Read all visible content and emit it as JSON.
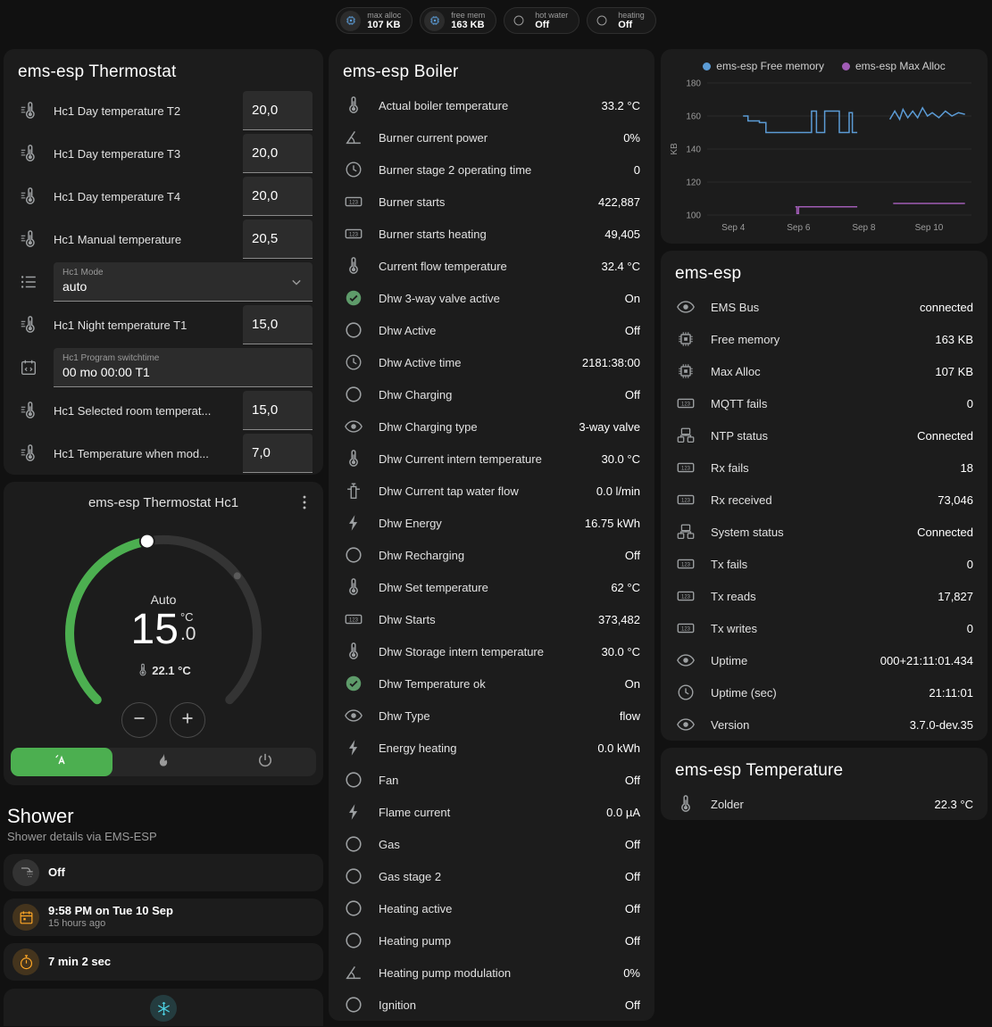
{
  "colors": {
    "accent_green": "#4caf50",
    "check_green": "#5e9b6a",
    "badge_chip_blue": "#5b9bd5",
    "amber": "#ffa726",
    "teal": "#4dd0e1",
    "free_memory_line": "#5b9bd5",
    "max_alloc_line": "#a05cb5"
  },
  "badges": [
    {
      "icon": "chip",
      "label": "max alloc",
      "value": "107 KB",
      "icon_color": "#5b9bd5"
    },
    {
      "icon": "chip",
      "label": "free mem",
      "value": "163 KB",
      "icon_color": "#5b9bd5"
    },
    {
      "icon": "circle",
      "label": "hot water",
      "value": "Off",
      "icon_color": "#9b9b9b"
    },
    {
      "icon": "circle",
      "label": "heating",
      "value": "Off",
      "icon_color": "#9b9b9b"
    }
  ],
  "thermostat_card": {
    "title": "ems-esp Thermostat",
    "rows": [
      {
        "icon": "thermometer-lines",
        "label": "Hc1 Day temperature T2",
        "control": "number",
        "value": "20,0"
      },
      {
        "icon": "thermometer-lines",
        "label": "Hc1 Day temperature T3",
        "control": "number",
        "value": "20,0"
      },
      {
        "icon": "thermometer-lines",
        "label": "Hc1 Day temperature T4",
        "control": "number",
        "value": "20,0"
      },
      {
        "icon": "thermometer-lines",
        "label": "Hc1 Manual temperature",
        "control": "number",
        "value": "20,5"
      },
      {
        "icon": "list",
        "label": "Hc1 Mode",
        "control": "select",
        "value": "auto"
      },
      {
        "icon": "thermometer-lines",
        "label": "Hc1 Night temperature T1",
        "control": "number",
        "value": "15,0"
      },
      {
        "icon": "calendar-sync",
        "label": "Hc1 Program switchtime",
        "control": "text",
        "value": "00 mo 00:00 T1"
      },
      {
        "icon": "thermometer-lines",
        "label": "Hc1 Selected room temperat...",
        "control": "number",
        "value": "15,0"
      },
      {
        "icon": "thermometer-lines",
        "label": "Hc1 Temperature when mod...",
        "control": "number",
        "value": "7,0"
      }
    ]
  },
  "dial_card": {
    "title": "ems-esp Thermostat Hc1",
    "mode": "Auto",
    "target_int": "15",
    "target_dec": ".0",
    "target_unit": "°C",
    "current_temp": "22.1 °C",
    "buttons": [
      {
        "icon": "auto",
        "active": true
      },
      {
        "icon": "flame",
        "active": false
      },
      {
        "icon": "power",
        "active": false
      }
    ]
  },
  "shower": {
    "title": "Shower",
    "subtitle": "Shower details via EMS-ESP",
    "tiles": [
      {
        "icon": "shower",
        "color": "#9e9e9e",
        "primary": "Off",
        "secondary": ""
      },
      {
        "icon": "calendar",
        "color": "#ffa726",
        "primary": "9:58 PM on Tue 10 Sep",
        "secondary": "15 hours ago"
      },
      {
        "icon": "timer",
        "color": "#ffa726",
        "primary": "7 min 2 sec",
        "secondary": ""
      },
      {
        "icon": "snowflake",
        "color": "#4dd0e1",
        "primary": "",
        "secondary": "",
        "partial": true
      }
    ]
  },
  "boiler_card": {
    "title": "ems-esp Boiler",
    "rows": [
      {
        "icon": "thermometer",
        "label": "Actual boiler temperature",
        "value": "33.2 °C"
      },
      {
        "icon": "angle",
        "label": "Burner current power",
        "value": "0%"
      },
      {
        "icon": "clock",
        "label": "Burner stage 2 operating time",
        "value": "0"
      },
      {
        "icon": "counter",
        "label": "Burner starts",
        "value": "422,887"
      },
      {
        "icon": "counter",
        "label": "Burner starts heating",
        "value": "49,405"
      },
      {
        "icon": "thermometer",
        "label": "Current flow temperature",
        "value": "32.4 °C"
      },
      {
        "icon": "check-circle",
        "label": "Dhw 3-way valve active",
        "value": "On"
      },
      {
        "icon": "circle",
        "label": "Dhw Active",
        "value": "Off"
      },
      {
        "icon": "clock",
        "label": "Dhw Active time",
        "value": "2181:38:00"
      },
      {
        "icon": "circle",
        "label": "Dhw Charging",
        "value": "Off"
      },
      {
        "icon": "eye",
        "label": "Dhw Charging type",
        "value": "3-way valve"
      },
      {
        "icon": "thermometer",
        "label": "Dhw Current intern temperature",
        "value": "30.0 °C"
      },
      {
        "icon": "pump",
        "label": "Dhw Current tap water flow",
        "value": "0.0 l/min"
      },
      {
        "icon": "flash",
        "label": "Dhw Energy",
        "value": "16.75 kWh"
      },
      {
        "icon": "circle",
        "label": "Dhw Recharging",
        "value": "Off"
      },
      {
        "icon": "thermometer",
        "label": "Dhw Set temperature",
        "value": "62 °C"
      },
      {
        "icon": "counter",
        "label": "Dhw Starts",
        "value": "373,482"
      },
      {
        "icon": "thermometer",
        "label": "Dhw Storage intern temperature",
        "value": "30.0 °C"
      },
      {
        "icon": "check-circle",
        "label": "Dhw Temperature ok",
        "value": "On"
      },
      {
        "icon": "eye",
        "label": "Dhw Type",
        "value": "flow"
      },
      {
        "icon": "flash",
        "label": "Energy heating",
        "value": "0.0 kWh"
      },
      {
        "icon": "circle",
        "label": "Fan",
        "value": "Off"
      },
      {
        "icon": "flash",
        "label": "Flame current",
        "value": "0.0 µA"
      },
      {
        "icon": "circle",
        "label": "Gas",
        "value": "Off"
      },
      {
        "icon": "circle",
        "label": "Gas stage 2",
        "value": "Off"
      },
      {
        "icon": "circle",
        "label": "Heating active",
        "value": "Off"
      },
      {
        "icon": "circle",
        "label": "Heating pump",
        "value": "Off"
      },
      {
        "icon": "angle",
        "label": "Heating pump modulation",
        "value": "0%"
      },
      {
        "icon": "circle",
        "label": "Ignition",
        "value": "Off"
      }
    ]
  },
  "emsesp_card": {
    "title": "ems-esp",
    "rows": [
      {
        "icon": "eye",
        "label": "EMS Bus",
        "value": "connected"
      },
      {
        "icon": "chip",
        "label": "Free memory",
        "value": "163 KB"
      },
      {
        "icon": "chip",
        "label": "Max Alloc",
        "value": "107 KB"
      },
      {
        "icon": "counter",
        "label": "MQTT fails",
        "value": "0"
      },
      {
        "icon": "network",
        "label": "NTP status",
        "value": "Connected"
      },
      {
        "icon": "counter",
        "label": "Rx fails",
        "value": "18"
      },
      {
        "icon": "counter",
        "label": "Rx received",
        "value": "73,046"
      },
      {
        "icon": "network",
        "label": "System status",
        "value": "Connected"
      },
      {
        "icon": "counter",
        "label": "Tx fails",
        "value": "0"
      },
      {
        "icon": "counter",
        "label": "Tx reads",
        "value": "17,827"
      },
      {
        "icon": "counter",
        "label": "Tx writes",
        "value": "0"
      },
      {
        "icon": "eye",
        "label": "Uptime",
        "value": "000+21:11:01.434"
      },
      {
        "icon": "clock",
        "label": "Uptime (sec)",
        "value": "21:11:01"
      },
      {
        "icon": "eye",
        "label": "Version",
        "value": "3.7.0-dev.35"
      }
    ]
  },
  "temperature_card": {
    "title": "ems-esp Temperature",
    "rows": [
      {
        "icon": "thermometer",
        "label": "Zolder",
        "value": "22.3 °C"
      }
    ]
  },
  "chart_data": {
    "type": "line",
    "title": "",
    "xlabel": "",
    "ylabel": "KB",
    "ylim": [
      100,
      180
    ],
    "yticks": [
      100,
      120,
      140,
      160,
      180
    ],
    "xlim": [
      3.2,
      11.3
    ],
    "xticks": [
      {
        "x": 4,
        "label": "Sep 4"
      },
      {
        "x": 6,
        "label": "Sep 6"
      },
      {
        "x": 8,
        "label": "Sep 8"
      },
      {
        "x": 10,
        "label": "Sep 10"
      }
    ],
    "grid": true,
    "legend_position": "top",
    "series": [
      {
        "name": "ems-esp Free memory",
        "color": "#5b9bd5",
        "segments": [
          [
            [
              4.3,
              160
            ],
            [
              4.45,
              160
            ],
            [
              4.45,
              157
            ],
            [
              4.8,
              157
            ],
            [
              4.8,
              156
            ],
            [
              5.0,
              156
            ],
            [
              5.0,
              150
            ],
            [
              6.4,
              150
            ],
            [
              6.4,
              163
            ],
            [
              6.55,
              163
            ],
            [
              6.55,
              150
            ],
            [
              6.8,
              150
            ],
            [
              6.8,
              163
            ],
            [
              7.25,
              163
            ],
            [
              7.25,
              150
            ],
            [
              7.55,
              150
            ],
            [
              7.55,
              162
            ],
            [
              7.65,
              162
            ],
            [
              7.65,
              150
            ],
            [
              7.8,
              150
            ]
          ],
          [
            [
              8.8,
              158
            ],
            [
              8.95,
              163
            ],
            [
              9.1,
              158
            ],
            [
              9.2,
              164
            ],
            [
              9.35,
              159
            ],
            [
              9.5,
              163
            ],
            [
              9.65,
              159
            ],
            [
              9.8,
              165
            ],
            [
              9.95,
              160
            ],
            [
              10.1,
              162
            ],
            [
              10.3,
              159
            ],
            [
              10.5,
              163
            ],
            [
              10.7,
              160
            ],
            [
              10.9,
              162
            ],
            [
              11.1,
              161
            ]
          ]
        ]
      },
      {
        "name": "ems-esp Max Alloc",
        "color": "#a05cb5",
        "segments": [
          [
            [
              5.9,
              105
            ],
            [
              5.95,
              105
            ],
            [
              5.95,
              101
            ],
            [
              6.0,
              101
            ],
            [
              6.0,
              105
            ],
            [
              7.8,
              105
            ]
          ],
          [
            [
              8.9,
              107
            ],
            [
              11.1,
              107
            ]
          ]
        ]
      }
    ]
  }
}
